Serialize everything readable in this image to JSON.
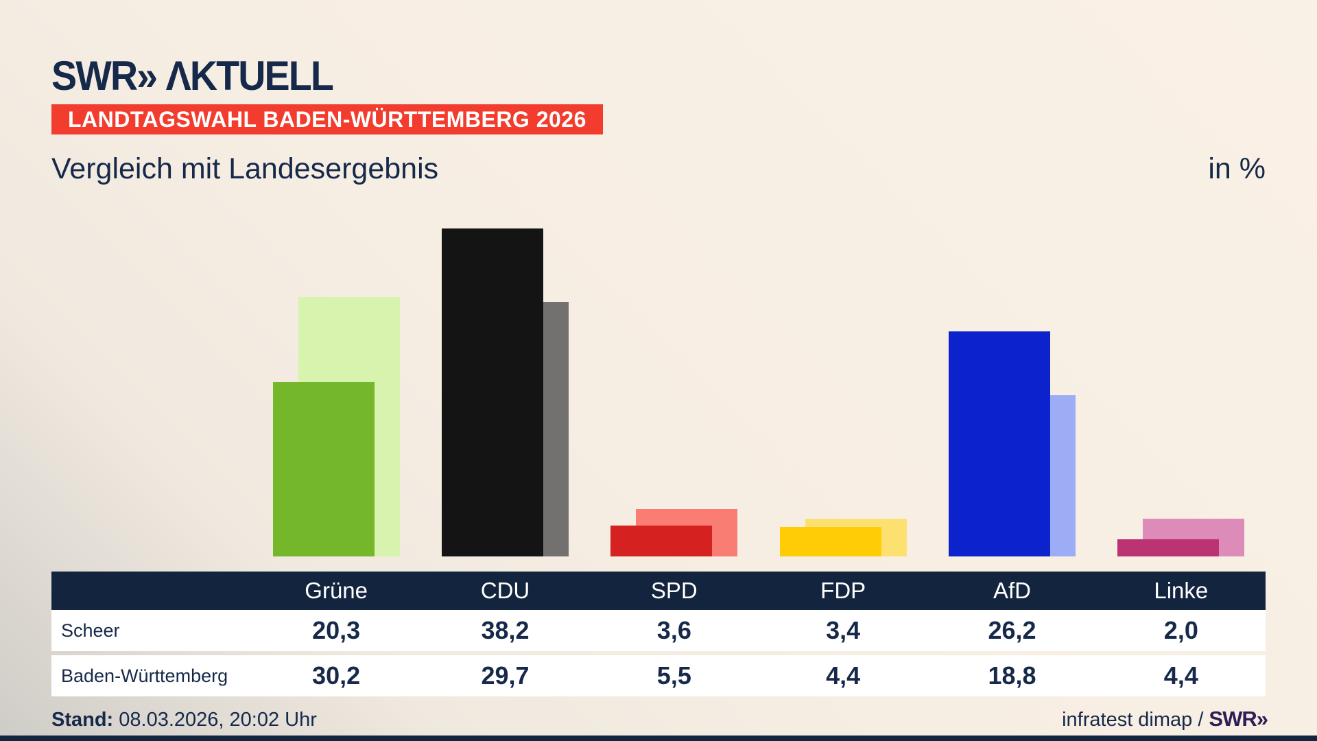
{
  "brand": {
    "logo_text": "SWR",
    "logo_chevrons": "»",
    "logo_word": "ΛKTUELL",
    "footer_logo_text": "SWR",
    "footer_logo_chevrons": "»"
  },
  "badge": {
    "label": "LANDTAGSWAHL BADEN-WÜRTTEMBERG 2026",
    "background": "#f23d2e",
    "text_color": "#ffffff"
  },
  "headline": {
    "title": "Vergleich mit Landesergebnis",
    "unit": "in %"
  },
  "chart_data": {
    "type": "bar",
    "categories": [
      "Grüne",
      "CDU",
      "SPD",
      "FDP",
      "AfD",
      "Linke"
    ],
    "series": [
      {
        "name": "Scheer",
        "values": [
          20.3,
          38.2,
          3.6,
          3.4,
          26.2,
          2.0
        ],
        "colors": [
          "#74b72b",
          "#141414",
          "#d52220",
          "#ffcc05",
          "#0b22cc",
          "#bb3373"
        ]
      },
      {
        "name": "Baden-Württemberg",
        "values": [
          30.2,
          29.7,
          5.5,
          4.4,
          18.8,
          4.4
        ],
        "colors": [
          "#d8f3ad",
          "#737070",
          "#f97d72",
          "#fde170",
          "#9dadf5",
          "#dd8cba"
        ]
      }
    ],
    "unit": "%",
    "ylim": [
      0,
      40
    ],
    "grid": false,
    "legend_position": "table-below-chart",
    "style": "paired bars, state result (light) offset behind candidate result (dark)"
  },
  "table": {
    "columns": [
      "Grüne",
      "CDU",
      "SPD",
      "FDP",
      "AfD",
      "Linke"
    ],
    "rows": [
      {
        "label": "Scheer",
        "values": [
          "20,3",
          "38,2",
          "3,6",
          "3,4",
          "26,2",
          "2,0"
        ]
      },
      {
        "label": "Baden-Württemberg",
        "values": [
          "30,2",
          "29,7",
          "5,5",
          "4,4",
          "18,8",
          "4,4"
        ]
      }
    ],
    "header_bg": "#13243f",
    "header_text_color": "#ffffff",
    "row_bg": "#ffffff",
    "value_color": "#16294a"
  },
  "footer": {
    "stand_label": "Stand:",
    "stand_value": "08.03.2026, 20:02 Uhr",
    "source_text": "infratest dimap /",
    "source_logo_color": "#2f1e55"
  },
  "colors": {
    "text_navy": "#16294a",
    "bottom_strip": "#13243f",
    "background_light": "#faf1e6",
    "background_dark_corner": "#cfccc7"
  }
}
